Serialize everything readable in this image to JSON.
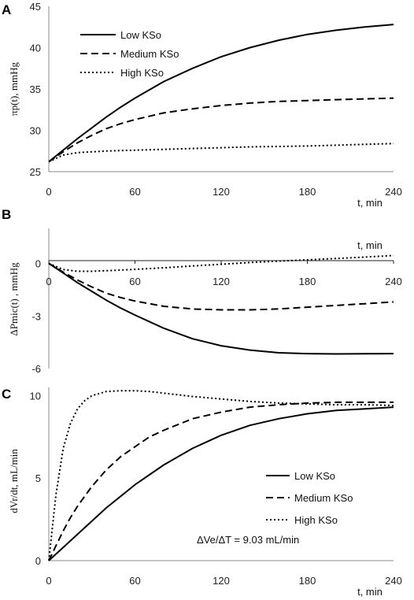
{
  "chart_data": [
    {
      "type": "line",
      "panel": "A",
      "ylabel": "πp(t), mmHg",
      "xlabel": "t, min",
      "xlim": [
        0,
        240
      ],
      "ylim": [
        25,
        45
      ],
      "xticks": [
        0,
        60,
        120,
        180,
        240
      ],
      "yticks": [
        25,
        30,
        35,
        40,
        45
      ],
      "legend": "top-left",
      "x": [
        0,
        10,
        20,
        30,
        40,
        50,
        60,
        80,
        100,
        120,
        140,
        160,
        180,
        200,
        220,
        240
      ],
      "series": [
        {
          "name": "Low KSo",
          "style": "solid",
          "values": [
            26.2,
            27.6,
            29.0,
            30.3,
            31.6,
            32.8,
            33.9,
            35.9,
            37.5,
            38.9,
            40.0,
            40.9,
            41.6,
            42.1,
            42.5,
            42.8
          ]
        },
        {
          "name": "Medium KSo",
          "style": "dashed",
          "values": [
            26.2,
            27.4,
            28.5,
            29.4,
            30.2,
            30.8,
            31.3,
            32.1,
            32.6,
            33.0,
            33.3,
            33.5,
            33.6,
            33.7,
            33.8,
            33.9
          ]
        },
        {
          "name": "High KSo",
          "style": "dotted",
          "values": [
            26.2,
            27.0,
            27.3,
            27.4,
            27.5,
            27.55,
            27.6,
            27.7,
            27.8,
            27.9,
            28.0,
            28.05,
            28.1,
            28.2,
            28.3,
            28.4
          ]
        }
      ]
    },
    {
      "type": "line",
      "panel": "B",
      "ylabel": "ΔPmic(t) , mmHg",
      "xlabel": "t, min",
      "xlim": [
        0,
        240
      ],
      "ylim": [
        -6,
        2
      ],
      "xticks": [
        0,
        60,
        120,
        180,
        240
      ],
      "yticks": [
        -6,
        -3,
        0
      ],
      "x": [
        0,
        10,
        20,
        30,
        40,
        50,
        60,
        80,
        100,
        120,
        140,
        160,
        180,
        200,
        220,
        240
      ],
      "series": [
        {
          "name": "Low KSo",
          "style": "solid",
          "values": [
            0,
            -0.55,
            -1.1,
            -1.6,
            -2.1,
            -2.55,
            -2.95,
            -3.7,
            -4.3,
            -4.7,
            -4.95,
            -5.1,
            -5.15,
            -5.17,
            -5.16,
            -5.15
          ]
        },
        {
          "name": "Medium KSo",
          "style": "dashed",
          "values": [
            0,
            -0.5,
            -0.95,
            -1.35,
            -1.7,
            -1.95,
            -2.15,
            -2.45,
            -2.6,
            -2.65,
            -2.65,
            -2.6,
            -2.5,
            -2.4,
            -2.3,
            -2.2
          ]
        },
        {
          "name": "High KSo",
          "style": "dotted",
          "values": [
            0,
            -0.35,
            -0.45,
            -0.45,
            -0.42,
            -0.38,
            -0.34,
            -0.25,
            -0.15,
            -0.05,
            0.05,
            0.13,
            0.2,
            0.28,
            0.36,
            0.45
          ]
        }
      ]
    },
    {
      "type": "line",
      "panel": "C",
      "ylabel": "dVr/dt, mL/min",
      "xlabel": "t, min",
      "xlim": [
        0,
        240
      ],
      "ylim": [
        0,
        10.5
      ],
      "xticks": [
        0,
        60,
        120,
        180,
        240
      ],
      "yticks": [
        0,
        5,
        10
      ],
      "legend": "right",
      "annotation": "ΔVe/ΔT = 9.03 mL/min",
      "x": [
        0,
        5,
        10,
        15,
        20,
        25,
        30,
        40,
        50,
        60,
        70,
        80,
        100,
        120,
        140,
        160,
        180,
        200,
        220,
        240
      ],
      "series": [
        {
          "name": "Low KSo",
          "style": "solid",
          "values": [
            0,
            0.4,
            0.8,
            1.2,
            1.6,
            2.0,
            2.4,
            3.2,
            3.9,
            4.6,
            5.2,
            5.8,
            6.8,
            7.6,
            8.2,
            8.6,
            8.9,
            9.1,
            9.2,
            9.3
          ]
        },
        {
          "name": "Medium KSo",
          "style": "dashed",
          "values": [
            0,
            0.9,
            1.8,
            2.6,
            3.3,
            3.9,
            4.5,
            5.5,
            6.3,
            6.9,
            7.5,
            7.9,
            8.6,
            9.0,
            9.3,
            9.45,
            9.55,
            9.6,
            9.6,
            9.6
          ]
        },
        {
          "name": "High KSo",
          "style": "dotted",
          "values": [
            0,
            4.0,
            6.8,
            8.3,
            9.2,
            9.7,
            10.0,
            10.25,
            10.3,
            10.3,
            10.25,
            10.15,
            9.95,
            9.8,
            9.65,
            9.55,
            9.5,
            9.45,
            9.45,
            9.4
          ]
        }
      ]
    }
  ]
}
